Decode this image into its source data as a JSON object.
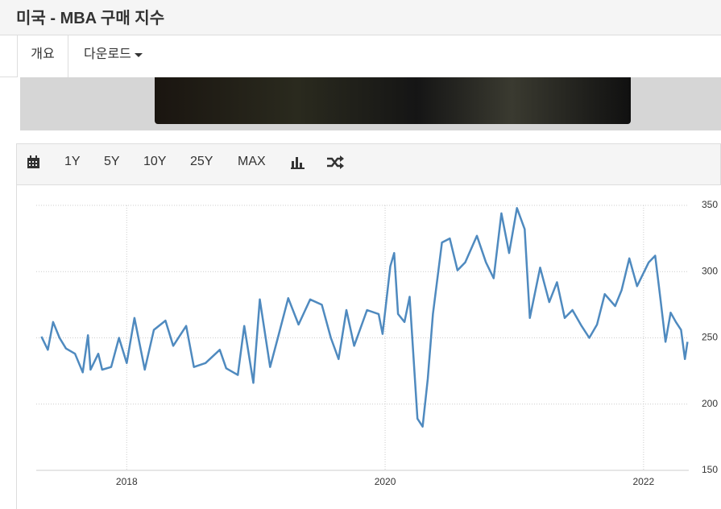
{
  "header": {
    "title": "미국 - MBA 구매 지수"
  },
  "tabs": [
    "개요",
    "다운로드"
  ],
  "toolbar": [
    "1Y",
    "5Y",
    "10Y",
    "25Y",
    "MAX"
  ],
  "chart_data": {
    "type": "line",
    "x": [
      2017.34,
      2017.39,
      2017.43,
      2017.48,
      2017.53,
      2017.6,
      2017.66,
      2017.7,
      2017.72,
      2017.78,
      2017.81,
      2017.88,
      2017.94,
      2018.0,
      2018.06,
      2018.14,
      2018.21,
      2018.3,
      2018.36,
      2018.46,
      2018.52,
      2018.61,
      2018.72,
      2018.77,
      2018.86,
      2018.91,
      2018.98,
      2019.03,
      2019.11,
      2019.17,
      2019.25,
      2019.33,
      2019.42,
      2019.51,
      2019.58,
      2019.64,
      2019.7,
      2019.76,
      2019.86,
      2019.95,
      2019.98,
      2020.04,
      2020.07,
      2020.1,
      2020.15,
      2020.19,
      2020.25,
      2020.29,
      2020.33,
      2020.37,
      2020.44,
      2020.5,
      2020.56,
      2020.62,
      2020.71,
      2020.78,
      2020.84,
      2020.9,
      2020.96,
      2021.02,
      2021.08,
      2021.12,
      2021.2,
      2021.27,
      2021.33,
      2021.39,
      2021.45,
      2021.52,
      2021.58,
      2021.64,
      2021.7,
      2021.78,
      2021.83,
      2021.89,
      2021.95,
      2022.04,
      2022.09,
      2022.13,
      2022.17,
      2022.21,
      2022.25,
      2022.29,
      2022.32,
      2022.34
    ],
    "series": [
      {
        "color": "#4f8abf",
        "values": [
          251,
          241,
          262,
          250,
          242,
          238,
          224,
          252,
          226,
          238,
          226,
          228,
          250,
          231,
          265,
          226,
          256,
          263,
          244,
          259,
          228,
          231,
          241,
          227,
          222,
          259,
          216,
          279,
          228,
          250,
          280,
          260,
          279,
          275,
          250,
          234,
          271,
          244,
          271,
          268,
          253,
          304,
          314,
          268,
          262,
          281,
          189,
          183,
          219,
          268,
          322,
          325,
          301,
          307,
          327,
          307,
          295,
          344,
          314,
          348,
          332,
          265,
          303,
          277,
          292,
          265,
          271,
          259,
          250,
          260,
          283,
          274,
          286,
          310,
          289,
          307,
          312,
          280,
          247,
          269,
          262,
          256,
          234,
          247
        ]
      }
    ],
    "xlim": [
      2017.3,
      2022.35
    ],
    "ylim": [
      150,
      350
    ],
    "xticks": [
      2018,
      2020,
      2022
    ],
    "yticks": [
      150,
      200,
      250,
      300,
      350
    ],
    "grid": true
  }
}
